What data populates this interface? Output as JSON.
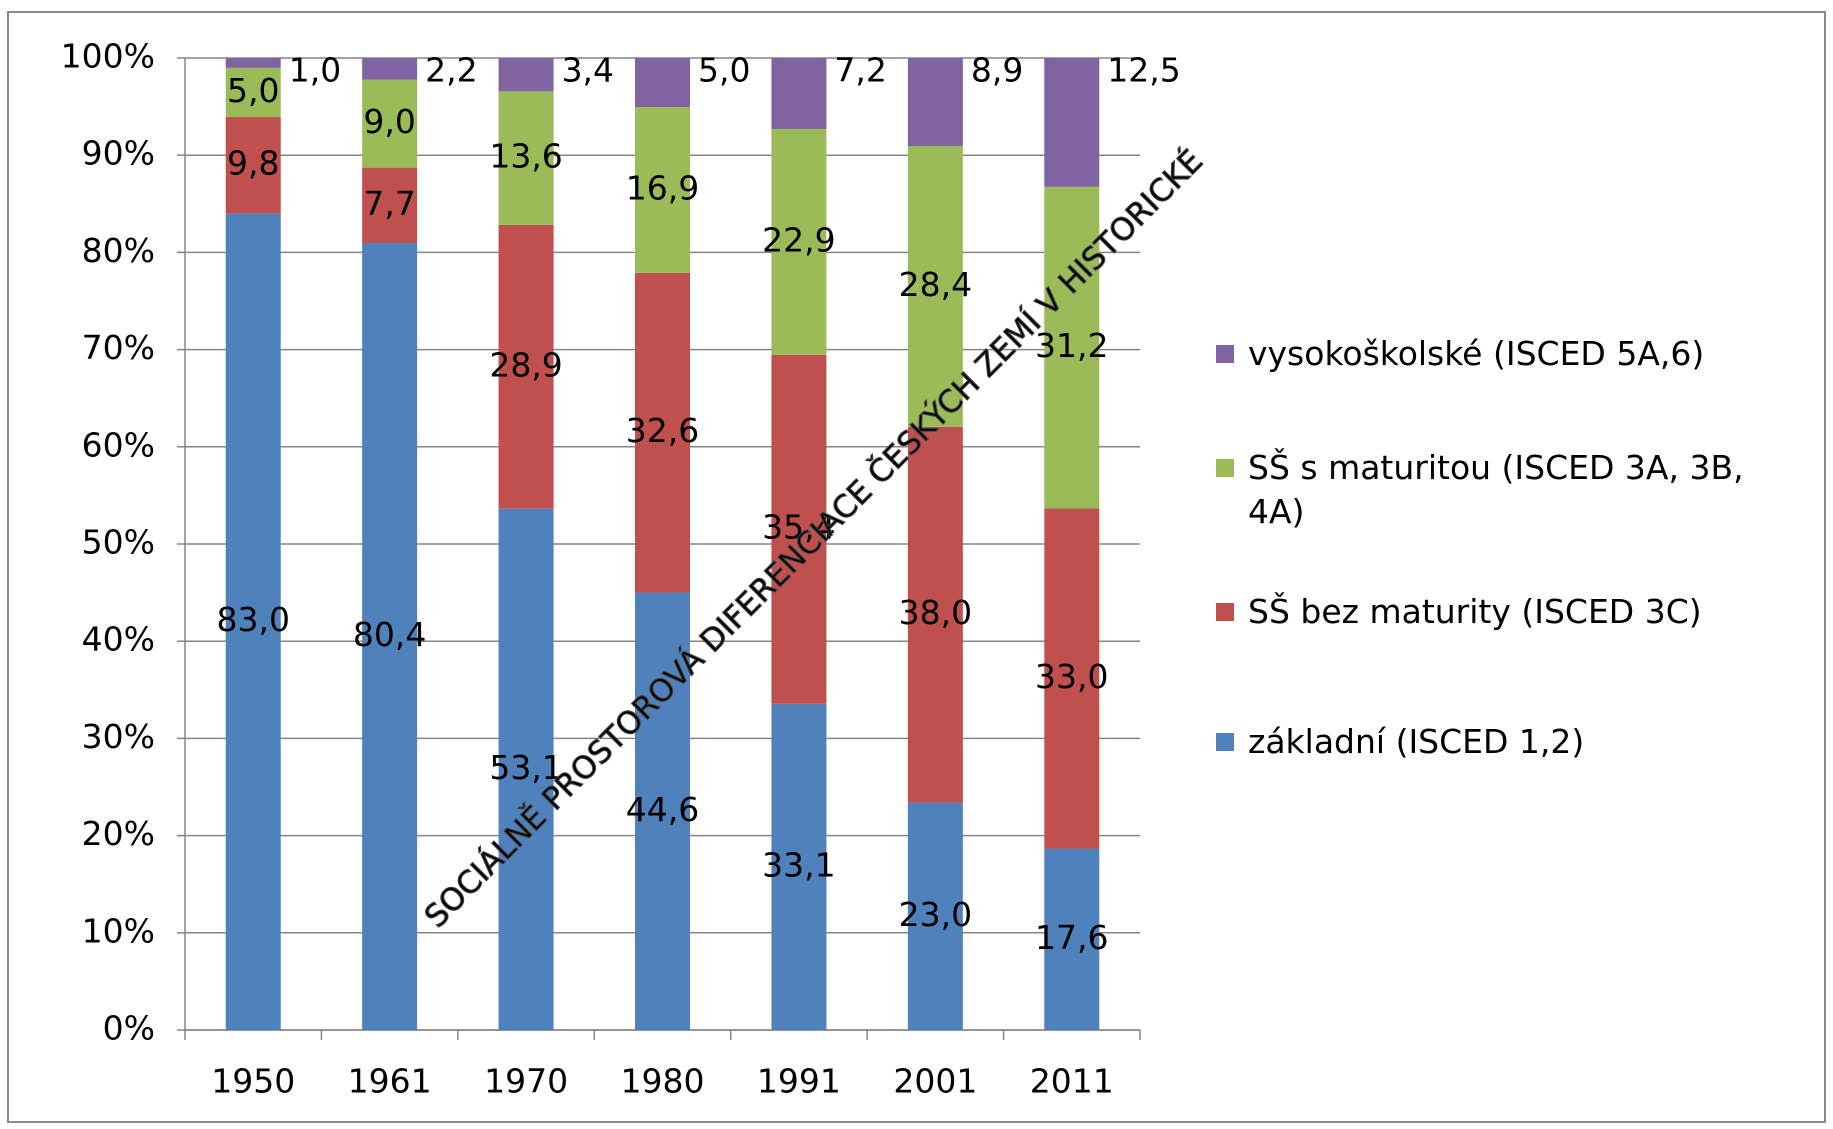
{
  "chart_data": {
    "type": "bar",
    "stacking": "percent",
    "categories": [
      "1950",
      "1961",
      "1970",
      "1980",
      "1991",
      "2001",
      "2011"
    ],
    "series": [
      {
        "name": "základní (ISCED 1,2)",
        "color": "#4f81bd",
        "values": [
          83.0,
          80.4,
          53.1,
          44.6,
          33.1,
          23.0,
          17.6
        ],
        "value_labels": [
          "83,0",
          "80,4",
          "53,1",
          "44,6",
          "33,1",
          "23,0",
          "17,6"
        ]
      },
      {
        "name": "SŠ bez maturity (ISCED 3C)",
        "color": "#c0504d",
        "values": [
          9.8,
          7.7,
          28.9,
          32.6,
          35.4,
          38.0,
          33.0
        ],
        "value_labels": [
          "9,8",
          "7,7",
          "28,9",
          "32,6",
          "35,4",
          "38,0",
          "33,0"
        ]
      },
      {
        "name": "SŠ s maturitou (ISCED 3A, 3B, 4A)",
        "color": "#9bbb59",
        "values": [
          5.0,
          9.0,
          13.6,
          16.9,
          22.9,
          28.4,
          31.2
        ],
        "value_labels": [
          "5,0",
          "9,0",
          "13,6",
          "16,9",
          "22,9",
          "28,4",
          "31,2"
        ]
      },
      {
        "name": "vysokoškolské (ISCED 5A,6)",
        "color": "#8064a2",
        "values": [
          1.0,
          2.2,
          3.4,
          5.0,
          7.2,
          8.9,
          12.5
        ],
        "value_labels": [
          "1,0",
          "2,2",
          "3,4",
          "5,0",
          "7,2",
          "8,9",
          "12,5"
        ]
      }
    ],
    "ylim": [
      0,
      100
    ],
    "yticks": [
      {
        "value": 0,
        "label": "0%"
      },
      {
        "value": 10,
        "label": "10%"
      },
      {
        "value": 20,
        "label": "20%"
      },
      {
        "value": 30,
        "label": "30%"
      },
      {
        "value": 40,
        "label": "40%"
      },
      {
        "value": 50,
        "label": "50%"
      },
      {
        "value": 60,
        "label": "60%"
      },
      {
        "value": 70,
        "label": "70%"
      },
      {
        "value": 80,
        "label": "80%"
      },
      {
        "value": 90,
        "label": "90%"
      },
      {
        "value": 100,
        "label": "100%"
      }
    ],
    "grid": true,
    "legend": "right",
    "watermark": "SOCIÁLNĚ PROSTOROVÁ DIFERENCIACE ČESKÝCH ZEMÍ V HISTORICKÉ"
  }
}
